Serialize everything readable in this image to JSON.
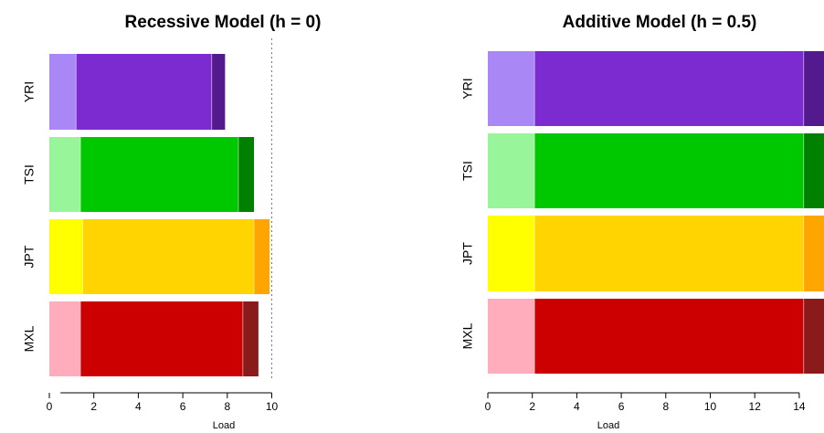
{
  "chart_data": [
    {
      "type": "bar",
      "orientation": "horizontal",
      "stacked": true,
      "title": "Recessive Model (h = 0)",
      "xlabel": "Load",
      "ylabel": "",
      "categories": [
        "YRI",
        "TSI",
        "JPT",
        "MXL"
      ],
      "xlim": [
        0,
        10
      ],
      "xticks": [
        "0",
        "2",
        "4",
        "6",
        "8",
        "10"
      ],
      "reference_line": 10,
      "grid": false,
      "segments": [
        {
          "category": "YRI",
          "values": [
            1.2,
            6.1,
            0.6
          ],
          "colors": [
            "#a987f5",
            "#7b2bd0",
            "#521a8c"
          ]
        },
        {
          "category": "TSI",
          "values": [
            1.4,
            7.1,
            0.7
          ],
          "colors": [
            "#99f599",
            "#00c800",
            "#008000"
          ]
        },
        {
          "category": "JPT",
          "values": [
            1.5,
            7.7,
            0.7
          ],
          "colors": [
            "#ffff00",
            "#ffd400",
            "#ffa500"
          ]
        },
        {
          "category": "MXL",
          "values": [
            1.4,
            7.3,
            0.7
          ],
          "colors": [
            "#ffadbd",
            "#cc0000",
            "#8b1a1a"
          ]
        }
      ]
    },
    {
      "type": "bar",
      "orientation": "horizontal",
      "stacked": true,
      "title": "Additive Model (h = 0.5)",
      "xlabel": "Load",
      "ylabel": "",
      "categories": [
        "YRI",
        "TSI",
        "JPT",
        "MXL"
      ],
      "xlim": [
        0,
        14
      ],
      "xticks": [
        "0",
        "2",
        "4",
        "6",
        "8",
        "10",
        "12",
        "14"
      ],
      "grid": false,
      "segments": [
        {
          "category": "YRI",
          "values": [
            2.1,
            12.1,
            1.0
          ],
          "colors": [
            "#a987f5",
            "#7b2bd0",
            "#521a8c"
          ]
        },
        {
          "category": "TSI",
          "values": [
            2.1,
            12.1,
            1.0
          ],
          "colors": [
            "#99f599",
            "#00c800",
            "#008000"
          ]
        },
        {
          "category": "JPT",
          "values": [
            2.1,
            12.1,
            1.0
          ],
          "colors": [
            "#ffff00",
            "#ffd400",
            "#ffa500"
          ]
        },
        {
          "category": "MXL",
          "values": [
            2.1,
            12.1,
            1.0
          ],
          "colors": [
            "#ffadbd",
            "#cc0000",
            "#8b1a1a"
          ]
        }
      ]
    }
  ]
}
